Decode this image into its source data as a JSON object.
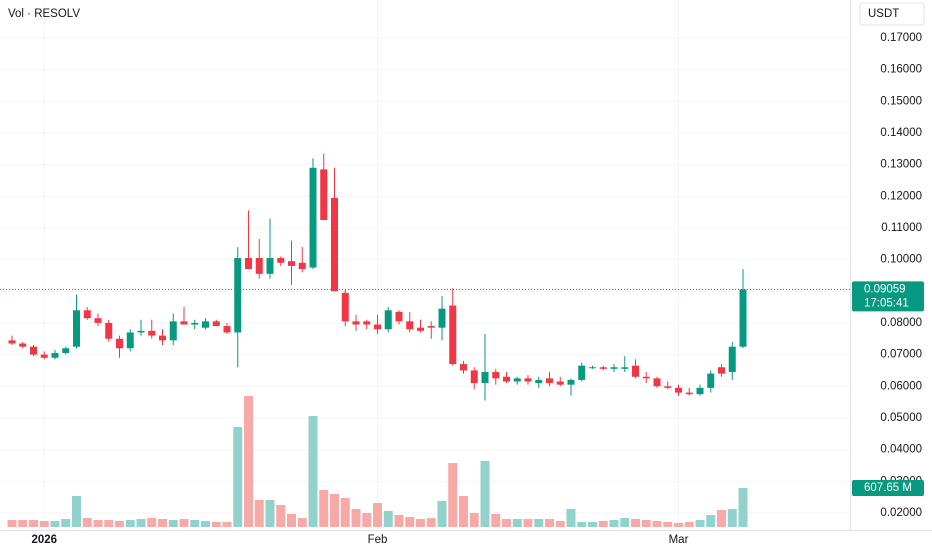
{
  "chart_data": {
    "type": "candlestick",
    "volume_title": "Vol · RESOLV",
    "currency": "USDT",
    "countdown": "17:05:41",
    "categories": [
      null,
      null,
      null,
      "2026",
      null,
      null,
      null,
      null,
      null,
      null,
      null,
      null,
      null,
      null,
      null,
      null,
      null,
      null,
      null,
      null,
      null,
      null,
      null,
      null,
      null,
      null,
      null,
      null,
      null,
      null,
      null,
      null,
      null,
      null,
      "Feb",
      null,
      null,
      null,
      null,
      null,
      null,
      null,
      null,
      null,
      null,
      null,
      null,
      null,
      null,
      null,
      null,
      null,
      null,
      null,
      null,
      null,
      null,
      null,
      null,
      null,
      null,
      null,
      "Mar",
      null,
      null,
      null,
      null,
      null,
      null
    ],
    "open": [
      0.0745,
      0.0735,
      0.0725,
      0.07,
      0.069,
      0.0705,
      0.0725,
      0.084,
      0.0815,
      0.08,
      0.075,
      0.072,
      0.077,
      0.0775,
      0.076,
      0.0745,
      0.0805,
      0.0795,
      0.0785,
      0.0805,
      0.079,
      0.077,
      0.1005,
      0.1005,
      0.0955,
      0.1005,
      0.0995,
      0.099,
      0.0975,
      0.1285,
      0.1195,
      0.0895,
      0.0805,
      0.0805,
      0.0795,
      0.078,
      0.0835,
      0.0805,
      0.0785,
      0.079,
      0.0785,
      0.0855,
      0.067,
      0.065,
      0.061,
      0.0645,
      0.063,
      0.0615,
      0.0625,
      0.061,
      0.0625,
      0.0615,
      0.0605,
      0.062,
      0.066,
      0.066,
      0.0655,
      0.0655,
      0.0665,
      0.063,
      0.0625,
      0.06,
      0.0595,
      0.058,
      0.0575,
      0.0595,
      0.066,
      0.0645,
      0.0725
    ],
    "high": [
      0.076,
      0.074,
      0.073,
      0.071,
      0.0715,
      0.0725,
      0.089,
      0.085,
      0.083,
      0.081,
      0.076,
      0.078,
      0.081,
      0.081,
      0.078,
      0.083,
      0.085,
      0.081,
      0.0815,
      0.081,
      0.08,
      0.104,
      0.1155,
      0.1065,
      0.113,
      0.101,
      0.106,
      0.104,
      0.132,
      0.1335,
      0.129,
      0.0905,
      0.0825,
      0.081,
      0.0825,
      0.085,
      0.084,
      0.0835,
      0.081,
      0.0805,
      0.0885,
      0.091,
      0.068,
      0.066,
      0.0765,
      0.0655,
      0.0645,
      0.063,
      0.0635,
      0.063,
      0.0645,
      0.063,
      0.0625,
      0.0675,
      0.0665,
      0.0665,
      0.067,
      0.0695,
      0.0685,
      0.0645,
      0.063,
      0.0615,
      0.0605,
      0.0595,
      0.0605,
      0.065,
      0.067,
      0.074,
      0.097
    ],
    "low": [
      0.073,
      0.072,
      0.0695,
      0.0685,
      0.0685,
      0.07,
      0.072,
      0.081,
      0.079,
      0.074,
      0.069,
      0.071,
      0.076,
      0.075,
      0.073,
      0.073,
      0.0795,
      0.078,
      0.078,
      0.079,
      0.0765,
      0.066,
      0.098,
      0.094,
      0.094,
      0.098,
      0.092,
      0.096,
      0.097,
      0.113,
      0.09,
      0.079,
      0.0775,
      0.078,
      0.0765,
      0.077,
      0.0795,
      0.077,
      0.077,
      0.075,
      0.0745,
      0.0665,
      0.064,
      0.059,
      0.0555,
      0.0605,
      0.061,
      0.0605,
      0.0605,
      0.0595,
      0.06,
      0.06,
      0.057,
      0.0615,
      0.0655,
      0.065,
      0.0645,
      0.0645,
      0.0625,
      0.061,
      0.0595,
      0.059,
      0.057,
      0.057,
      0.057,
      0.058,
      0.063,
      0.062,
      0.072
    ],
    "close": [
      0.0735,
      0.0725,
      0.07,
      0.069,
      0.0705,
      0.072,
      0.084,
      0.0815,
      0.08,
      0.075,
      0.072,
      0.077,
      0.0775,
      0.076,
      0.0745,
      0.0805,
      0.0795,
      0.08,
      0.0805,
      0.079,
      0.077,
      0.1005,
      0.097,
      0.0955,
      0.1005,
      0.099,
      0.098,
      0.097,
      0.129,
      0.1125,
      0.09,
      0.0805,
      0.0795,
      0.0795,
      0.078,
      0.084,
      0.0805,
      0.078,
      0.0775,
      0.0785,
      0.0845,
      0.067,
      0.065,
      0.061,
      0.0645,
      0.0625,
      0.0615,
      0.0625,
      0.0615,
      0.062,
      0.061,
      0.0605,
      0.062,
      0.0665,
      0.066,
      0.0655,
      0.066,
      0.066,
      0.063,
      0.0625,
      0.06,
      0.0595,
      0.058,
      0.0575,
      0.0595,
      0.064,
      0.064,
      0.0725,
      0.09059
    ],
    "volume": {
      "values": [
        109,
        109,
        109,
        94,
        94,
        125,
        484,
        140,
        109,
        109,
        94,
        109,
        125,
        140,
        125,
        109,
        125,
        109,
        94,
        78,
        78,
        1560,
        2044,
        421,
        421,
        343,
        203,
        140,
        1732,
        577,
        515,
        452,
        281,
        218,
        374,
        250,
        187,
        156,
        125,
        140,
        406,
        998,
        484,
        218,
        1030,
        203,
        125,
        125,
        125,
        125,
        125,
        94,
        281,
        78,
        78,
        94,
        109,
        140,
        125,
        109,
        94,
        78,
        62,
        78,
        109,
        187,
        265,
        281,
        607.65
      ],
      "value_labels": [
        null,
        null,
        null,
        null,
        null,
        null,
        null,
        null,
        null,
        null,
        null,
        null,
        null,
        null,
        null,
        null,
        null,
        null,
        null,
        null,
        null,
        null,
        null,
        null,
        null,
        null,
        null,
        null,
        null,
        null,
        null,
        null,
        null,
        null,
        null,
        null,
        null,
        null,
        null,
        null,
        null,
        null,
        null,
        null,
        null,
        null,
        null,
        null,
        null,
        null,
        null,
        null,
        null,
        null,
        null,
        null,
        null,
        null,
        null,
        null,
        null,
        null,
        null,
        null,
        null,
        null,
        null,
        null,
        "607.65 M"
      ]
    },
    "up_color": "#089981",
    "down_color": "#f23645",
    "volume_up_color": "#92d2cc",
    "volume_down_color": "#f7a9a7",
    "ylim": [
      0.0146,
      0.182
    ],
    "yticks": [
      {
        "value": 0.17,
        "label": "0.17000"
      },
      {
        "value": 0.16,
        "label": "0.16000"
      },
      {
        "value": 0.15,
        "label": "0.15000"
      },
      {
        "value": 0.14,
        "label": "0.14000"
      },
      {
        "value": 0.13,
        "label": "0.13000"
      },
      {
        "value": 0.12,
        "label": "0.12000"
      },
      {
        "value": 0.11,
        "label": "0.11000"
      },
      {
        "value": 0.1,
        "label": "0.10000"
      },
      {
        "value": 0.09,
        "label": "0.09000"
      },
      {
        "value": 0.08,
        "label": "0.08000"
      },
      {
        "value": 0.07,
        "label": "0.07000"
      },
      {
        "value": 0.06,
        "label": "0.06000"
      },
      {
        "value": 0.05,
        "label": "0.05000"
      },
      {
        "value": 0.04,
        "label": "0.04000"
      },
      {
        "value": 0.03,
        "label": "0.03000"
      },
      {
        "value": 0.02,
        "label": "0.02000"
      }
    ],
    "grid": true
  }
}
